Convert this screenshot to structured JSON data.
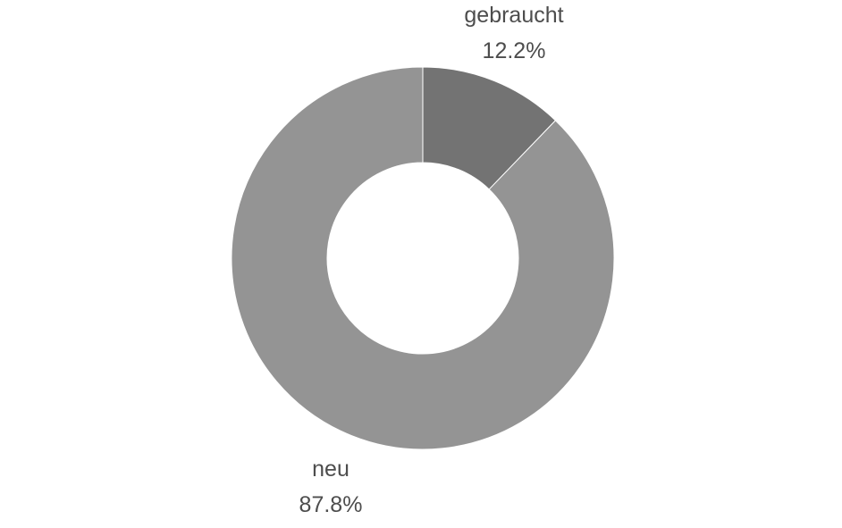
{
  "chart_data": {
    "type": "pie",
    "donut": true,
    "title": "",
    "legend": "none",
    "slices": [
      {
        "label": "gebraucht",
        "percent_label": "12.2%",
        "value": 12.2,
        "color": "#737373"
      },
      {
        "label": "neu",
        "percent_label": "87.8%",
        "value": 87.8,
        "color": "#949494"
      }
    ]
  },
  "colors": {
    "background": "#ffffff",
    "label_text": "#4d4d4d",
    "slice_border": "#ffffff"
  }
}
